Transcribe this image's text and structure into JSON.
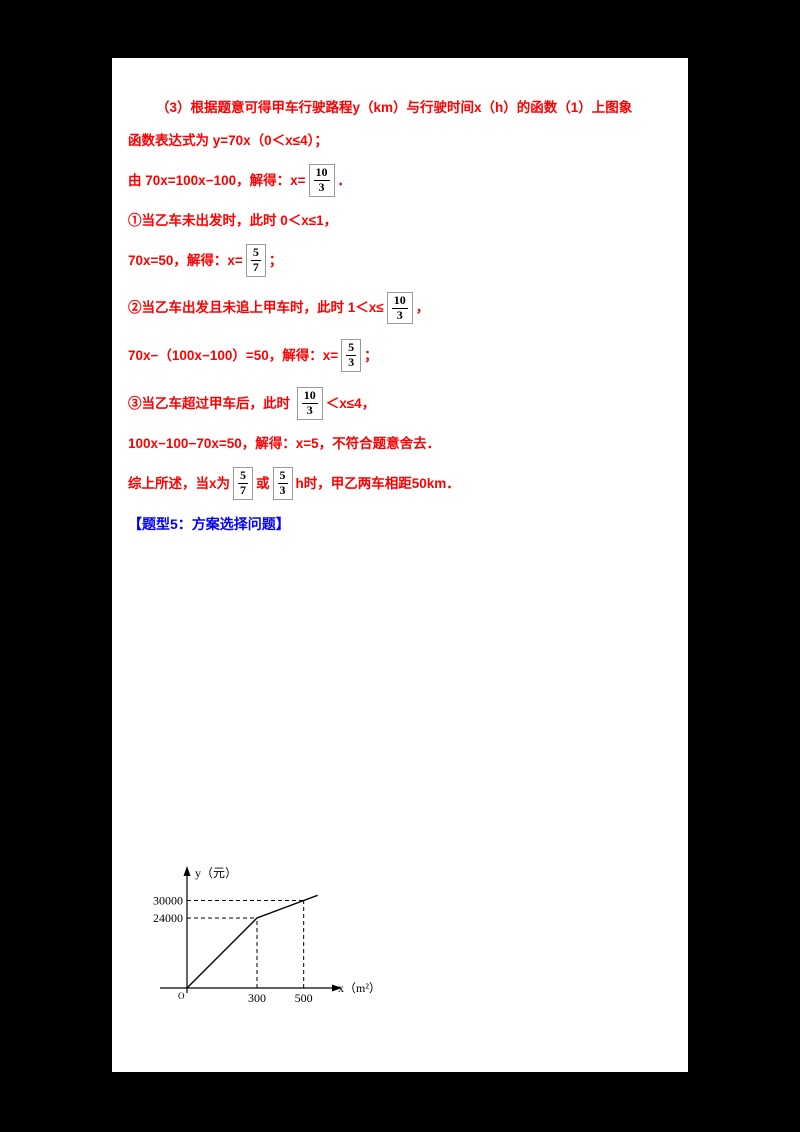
{
  "page": {
    "background": "#000000",
    "paper": "#ffffff",
    "accent_red": "#ff0000",
    "accent_blue": "#0000ff"
  },
  "solution": {
    "text_color": "#ff0000",
    "lines": [
      {
        "indent": true,
        "segments": [
          {
            "t": "（3）根据题意可得甲车行驶路程y（km）与行驶时间x（h）的函数（1）上图象"
          }
        ]
      },
      {
        "segments": [
          {
            "t": "函数表达式为 y=70x（0＜x≤4）；"
          }
        ]
      },
      {
        "segments": [
          {
            "t": "由 70x=100x−100，解得：x="
          },
          {
            "frac": [
              "10",
              "3"
            ]
          },
          {
            "t": "．"
          }
        ]
      },
      {
        "segments": [
          {
            "t": "①当乙车未出发时，此时 0＜x≤1，"
          }
        ]
      },
      {
        "segments": [
          {
            "t": "70x=50，解得：x="
          },
          {
            "frac": [
              "5",
              "7"
            ]
          },
          {
            "t": "；"
          }
        ]
      },
      {
        "segments": [
          {
            "t": "②当乙车出发且未追上甲车时，此时 1＜x≤"
          },
          {
            "frac": [
              "10",
              "3"
            ]
          },
          {
            "t": "，"
          }
        ]
      },
      {
        "segments": [
          {
            "t": "70x−（100x−100）=50，解得：x="
          },
          {
            "frac": [
              "5",
              "3"
            ]
          },
          {
            "t": "；"
          }
        ]
      },
      {
        "segments": [
          {
            "t": "③当乙车超过甲车后，此时 "
          },
          {
            "frac": [
              "10",
              "3"
            ]
          },
          {
            "t": "＜x≤4，"
          }
        ]
      },
      {
        "segments": [
          {
            "t": "100x−100−70x=50，解得：x=5，不符合题意舍去．"
          }
        ]
      },
      {
        "segments": [
          {
            "t": "综上所述，当x为"
          },
          {
            "frac": [
              "5",
              "7"
            ]
          },
          {
            "t": "或"
          },
          {
            "frac": [
              "5",
              "3"
            ]
          },
          {
            "t": "h时，甲乙两车相距50km．"
          }
        ]
      }
    ]
  },
  "section_header": {
    "text": "【题型5：方案选择问题】",
    "color": "#0000ff"
  },
  "chart_data": {
    "type": "line",
    "title": "",
    "xlabel": "x（m²）",
    "ylabel": "y（元）",
    "origin_label": "O",
    "x_ticks": [
      300,
      500
    ],
    "y_ticks": [
      24000,
      30000
    ],
    "series": [
      {
        "name": "cost-line",
        "points": [
          [
            0,
            0
          ],
          [
            300,
            24000
          ],
          [
            500,
            30000
          ],
          [
            560,
            31800
          ]
        ]
      }
    ],
    "dashed_guides": [
      {
        "x": 300,
        "y": 24000
      },
      {
        "x": 500,
        "y": 30000
      }
    ],
    "xlim": [
      0,
      640
    ],
    "ylim": [
      0,
      42000
    ],
    "grid": false,
    "legend": "none",
    "line_color": "#000000"
  }
}
